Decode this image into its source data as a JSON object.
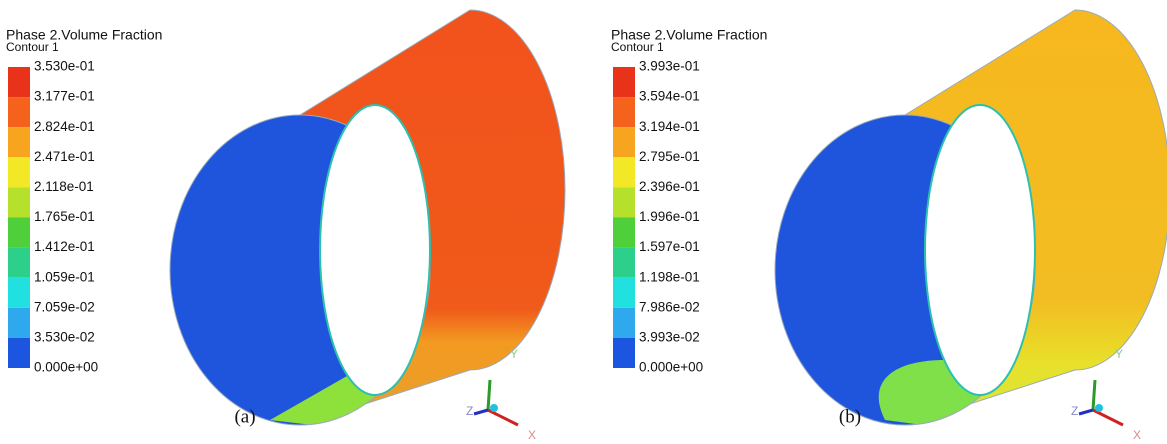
{
  "panels": [
    {
      "title": "Phase 2.Volume Fraction",
      "subtitle": "Contour 1",
      "legend": [
        "3.530e-01",
        "3.177e-01",
        "2.824e-01",
        "2.471e-01",
        "2.118e-01",
        "1.765e-01",
        "1.412e-01",
        "1.059e-01",
        "7.059e-02",
        "3.530e-02",
        "0.000e+00"
      ],
      "caption": "(a)",
      "axes": {
        "y": "Y",
        "x": "X",
        "z": "Z"
      }
    },
    {
      "title": "Phase 2.Volume Fraction",
      "subtitle": "Contour 1",
      "legend": [
        "3.993e-01",
        "3.594e-01",
        "3.194e-01",
        "2.795e-01",
        "2.396e-01",
        "1.996e-01",
        "1.597e-01",
        "1.198e-01",
        "7.986e-02",
        "3.993e-02",
        "0.000e+00"
      ],
      "caption": "(b)",
      "axes": {
        "y": "Y",
        "x": "X",
        "z": "Z"
      }
    }
  ]
}
